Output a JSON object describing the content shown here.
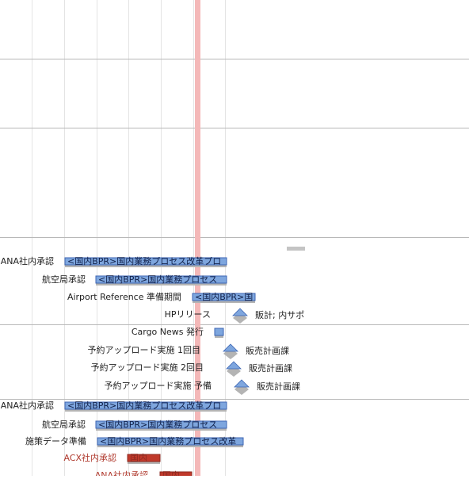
{
  "rows": [
    {
      "label": "ANA社内承認",
      "bar_text": "<国内BPR>国内業務プロセス改革プロ"
    },
    {
      "label": "航空局承認",
      "bar_text": "<国内BPR>国内業務プロセス"
    },
    {
      "label": "Airport Reference 準備期間",
      "bar_text": "<国内BPR>国"
    },
    {
      "label": "HPリリース",
      "note": "販計; 内サポ"
    },
    {
      "label": "Cargo News 発行"
    },
    {
      "label": "予約アップロード実施 1回目",
      "note": "販売計画課"
    },
    {
      "label": "予約アップロード実施 2回目",
      "note": "販売計画課"
    },
    {
      "label": "予約アップロード実施 予備",
      "note": "販売計画課"
    },
    {
      "label": "ANA社内承認",
      "bar_text": "<国内BPR>国内業務プロセス改革プロ"
    },
    {
      "label": "航空局承認",
      "bar_text": "<国内BPR>国内業務プロセス"
    },
    {
      "label": "施策データ準備",
      "bar_text": "<国内BPR>国内業務プロセス改革"
    },
    {
      "label": "ACX社内承認",
      "bar_text": "国内"
    },
    {
      "label": "ANA社内承認",
      "bar_text": "国内"
    }
  ]
}
